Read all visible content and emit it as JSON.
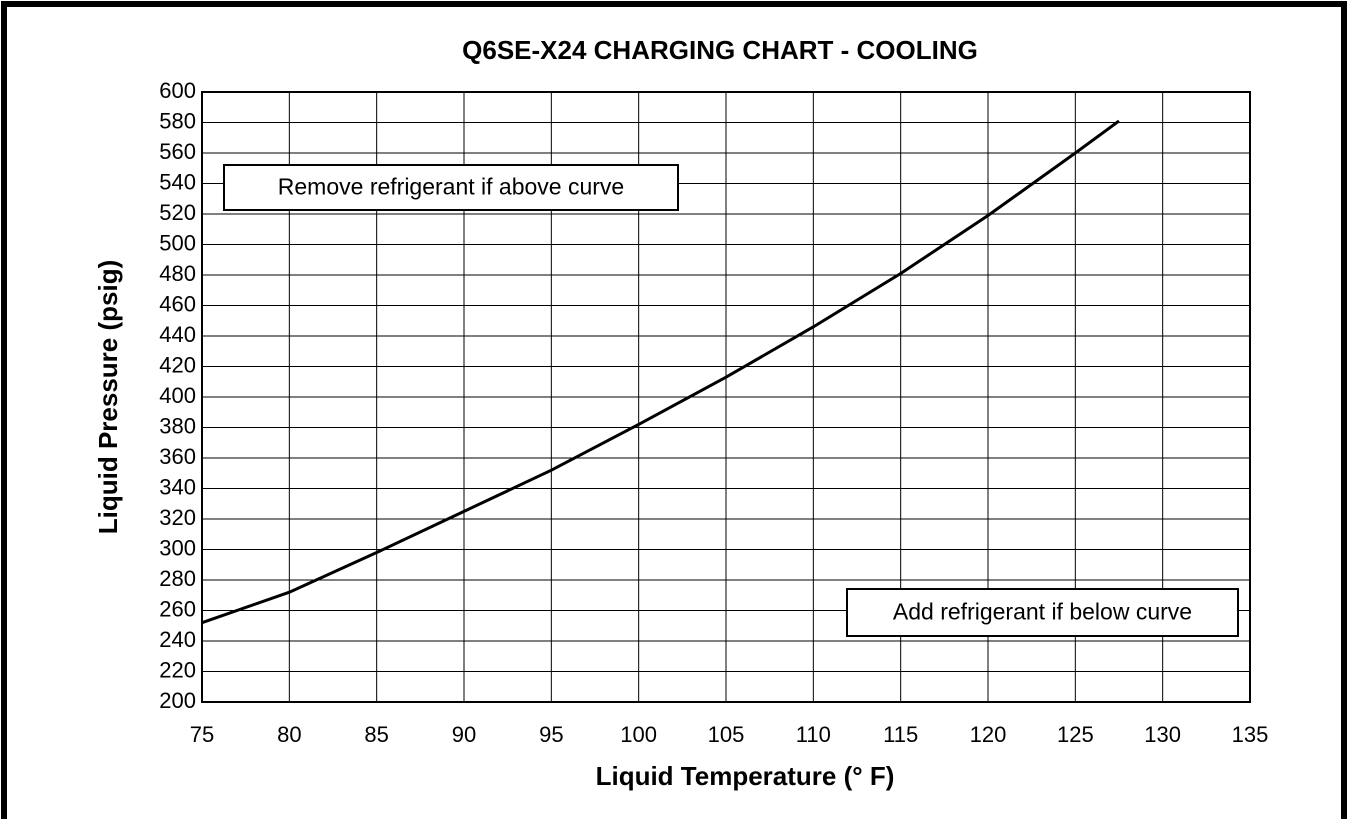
{
  "chart_data": {
    "type": "line",
    "title": "Q6SE-X24 CHARGING CHART - COOLING",
    "xlabel": "Liquid Temperature (° F)",
    "ylabel": "Liquid Pressure (psig)",
    "x": [
      75,
      80,
      85,
      90,
      95,
      100,
      105,
      110,
      115,
      120,
      125,
      127.5
    ],
    "series": [
      {
        "color": "#000000",
        "values": [
          252,
          272,
          298,
          325,
          352,
          382,
          413,
          446,
          481,
          519,
          560,
          581
        ]
      }
    ],
    "xlim": [
      75,
      135
    ],
    "ylim": [
      200,
      600
    ],
    "xticks": [
      75,
      80,
      85,
      90,
      95,
      100,
      105,
      110,
      115,
      120,
      125,
      130,
      135
    ],
    "yticks": [
      200,
      220,
      240,
      260,
      280,
      300,
      320,
      340,
      360,
      380,
      400,
      420,
      440,
      460,
      480,
      500,
      520,
      540,
      560,
      580,
      600
    ],
    "grid": true,
    "annotations": [
      "Remove refrigerant if above curve",
      "Add refrigerant if below curve"
    ]
  }
}
